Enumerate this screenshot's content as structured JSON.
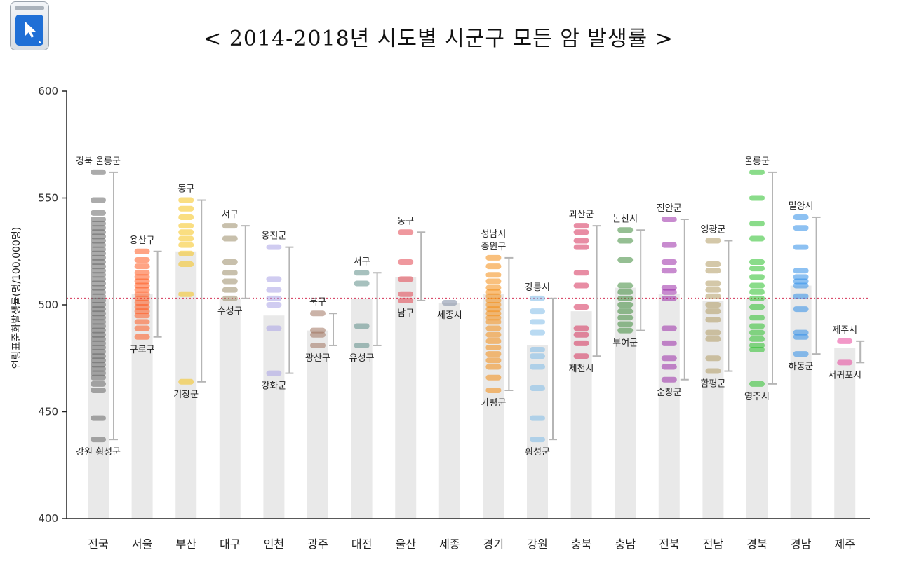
{
  "title": "< 2014-2018년 시도별 시군구 모든 암 발생률 >",
  "chart_data": {
    "type": "strip",
    "title": "< 2014-2018년 시도별 시군구 모든 암 발생률 >",
    "ylabel": "연령표준화발생률(명/100,000명)",
    "ylim": [
      400,
      600
    ],
    "yticks": [
      400,
      450,
      500,
      550,
      600
    ],
    "reference_line": 503,
    "categories": [
      {
        "name": "전국",
        "color": "#666666",
        "bar": 503,
        "values": [
          562,
          549,
          543,
          540,
          538,
          536,
          534,
          532,
          530,
          528,
          526,
          524,
          522,
          520,
          518,
          516,
          514,
          512,
          510,
          508,
          506,
          504,
          502,
          500,
          498,
          496,
          494,
          492,
          490,
          488,
          486,
          484,
          482,
          480,
          478,
          476,
          474,
          472,
          470,
          468,
          466,
          463,
          460,
          447,
          437
        ],
        "max_label": "경북 울릉군",
        "min_label": "강원 횡성군",
        "range": [
          437,
          562
        ]
      },
      {
        "name": "서울",
        "color": "#ff5a1f",
        "bar": 505,
        "values": [
          525,
          521,
          518,
          515,
          513,
          511,
          509,
          507,
          505,
          503,
          501,
          499,
          497,
          495,
          492,
          489,
          485
        ],
        "max_label": "용산구",
        "min_label": "구로구",
        "range": [
          485,
          525
        ]
      },
      {
        "name": "부산",
        "color": "#f6c21a",
        "bar": 525,
        "values": [
          549,
          545,
          541,
          537,
          534,
          531,
          528,
          524,
          519,
          505,
          464
        ],
        "max_label": "동구",
        "min_label": "기장군",
        "range": [
          464,
          549
        ]
      },
      {
        "name": "대구",
        "color": "#9a8d68",
        "bar": 503,
        "values": [
          537,
          531,
          520,
          515,
          511,
          507,
          503
        ],
        "max_label": "서구",
        "min_label": "수성구",
        "range": [
          503,
          537
        ]
      },
      {
        "name": "인천",
        "color": "#a9a2e6",
        "bar": 495,
        "values": [
          527,
          512,
          507,
          503,
          500,
          489,
          468
        ],
        "max_label": "옹진군",
        "min_label": "강화군",
        "range": [
          468,
          527
        ]
      },
      {
        "name": "광주",
        "color": "#a07560",
        "bar": 488,
        "values": [
          496,
          488,
          486,
          481
        ],
        "max_label": "북구",
        "min_label": "광산구",
        "range": [
          481,
          496
        ]
      },
      {
        "name": "대전",
        "color": "#5f8e88",
        "bar": 503,
        "values": [
          515,
          510,
          490,
          481
        ],
        "max_label": "서구",
        "min_label": "유성구",
        "range": [
          481,
          515
        ]
      },
      {
        "name": "울산",
        "color": "#e2434f",
        "bar": 513,
        "values": [
          534,
          520,
          512,
          505,
          502
        ],
        "max_label": "동구",
        "min_label": "남구",
        "range": [
          502,
          534
        ]
      },
      {
        "name": "세종",
        "color": "#7d8aa3",
        "bar": 501,
        "values": [
          501
        ],
        "max_label": "",
        "min_label": "세종시",
        "range": [
          501,
          501
        ]
      },
      {
        "name": "경기",
        "color": "#f48d12",
        "bar": 505,
        "values": [
          522,
          518,
          514,
          511,
          508,
          506,
          504,
          502,
          500,
          498,
          496,
          494,
          492,
          489,
          486,
          483,
          480,
          477,
          474,
          471,
          466,
          460
        ],
        "max_label": "성남시 중원구",
        "min_label": "가평군",
        "range": [
          460,
          522
        ]
      },
      {
        "name": "강원",
        "color": "#7fbce8",
        "bar": 481,
        "values": [
          503,
          497,
          492,
          487,
          479,
          476,
          471,
          461,
          447,
          437
        ],
        "max_label": "강릉시",
        "min_label": "횡성군",
        "range": [
          437,
          503
        ]
      },
      {
        "name": "충북",
        "color": "#d6305a",
        "bar": 497,
        "values": [
          537,
          534,
          530,
          527,
          515,
          509,
          499,
          489,
          486,
          482,
          476
        ],
        "max_label": "괴산군",
        "min_label": "제천시",
        "range": [
          476,
          537
        ]
      },
      {
        "name": "충남",
        "color": "#3e8a3a",
        "bar": 508,
        "values": [
          535,
          530,
          521,
          509,
          506,
          503,
          500,
          497,
          494,
          491,
          488
        ],
        "max_label": "논산시",
        "min_label": "부여군",
        "range": [
          488,
          535
        ]
      },
      {
        "name": "전북",
        "color": "#9a2ba8",
        "bar": 505,
        "values": [
          540,
          528,
          520,
          516,
          508,
          506,
          503,
          489,
          482,
          475,
          471,
          465
        ],
        "max_label": "진안군",
        "min_label": "순창군",
        "range": [
          465,
          540
        ]
      },
      {
        "name": "전남",
        "color": "#b09a63",
        "bar": 502,
        "values": [
          530,
          519,
          516,
          510,
          507,
          504,
          500,
          497,
          493,
          487,
          484,
          475,
          469
        ],
        "max_label": "영광군",
        "min_label": "함평군",
        "range": [
          469,
          530
        ]
      },
      {
        "name": "경북",
        "color": "#29bf29",
        "bar": 503,
        "values": [
          562,
          550,
          538,
          531,
          520,
          517,
          513,
          509,
          506,
          503,
          499,
          494,
          490,
          487,
          484,
          481,
          479,
          463
        ],
        "max_label": "울릉군",
        "min_label": "영주시",
        "range": [
          463,
          562
        ]
      },
      {
        "name": "경남",
        "color": "#2f8ee8",
        "bar": 509,
        "values": [
          541,
          536,
          527,
          516,
          513,
          511,
          509,
          504,
          498,
          487,
          485,
          477
        ],
        "max_label": "밀양시",
        "min_label": "하동군",
        "range": [
          477,
          541
        ]
      },
      {
        "name": "제주",
        "color": "#e8449a",
        "bar": 480,
        "values": [
          483,
          473
        ],
        "max_label": "제주시",
        "min_label": "서귀포시",
        "range": [
          473,
          483
        ]
      }
    ]
  }
}
